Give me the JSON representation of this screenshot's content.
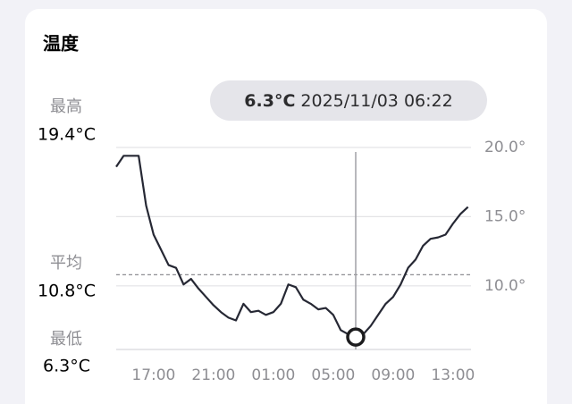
{
  "title": "温度",
  "stats": [
    {
      "label": "最高",
      "value": 19.4,
      "text": "19.4°C"
    },
    {
      "label": "平均",
      "value": 10.8,
      "text": "10.8°C"
    },
    {
      "label": "最低",
      "value": 6.3,
      "text": "6.3°C"
    }
  ],
  "tooltip": {
    "value": 6.3,
    "text": "6.3°C",
    "time": "2025/11/03 06:22"
  },
  "chart_data": {
    "type": "line",
    "categories": [
      null,
      null,
      null,
      null,
      null,
      "17:00",
      null,
      null,
      null,
      null,
      null,
      null,
      null,
      "21:00",
      null,
      null,
      null,
      null,
      null,
      null,
      null,
      "01:00",
      null,
      null,
      null,
      null,
      null,
      null,
      null,
      "05:00",
      null,
      null,
      null,
      null,
      null,
      null,
      null,
      "09:00",
      null,
      null,
      null,
      null,
      null,
      null,
      null,
      "13:00",
      null,
      null
    ],
    "series": [
      {
        "color": "#262834",
        "values": [
          18.6,
          19.4,
          19.4,
          19.4,
          15.8,
          13.7,
          12.6,
          11.5,
          11.3,
          10.1,
          10.5,
          9.8,
          9.2,
          8.6,
          8.1,
          7.7,
          7.5,
          8.7,
          8.1,
          8.2,
          7.9,
          8.1,
          8.7,
          10.1,
          9.9,
          9.0,
          8.7,
          8.3,
          8.4,
          7.9,
          6.8,
          6.5,
          6.3,
          6.5,
          7.1,
          7.9,
          8.7,
          9.2,
          10.1,
          11.3,
          11.9,
          12.9,
          13.4,
          13.5,
          13.7,
          14.5,
          15.2,
          15.7
        ]
      }
    ],
    "ylim": [
      5.4,
      20
    ],
    "yticks": [
      {
        "value": 10,
        "label": "10.0°"
      },
      {
        "value": 15,
        "label": "15.0°"
      },
      {
        "value": 20,
        "label": "20.0°"
      }
    ],
    "grid": true
  }
}
